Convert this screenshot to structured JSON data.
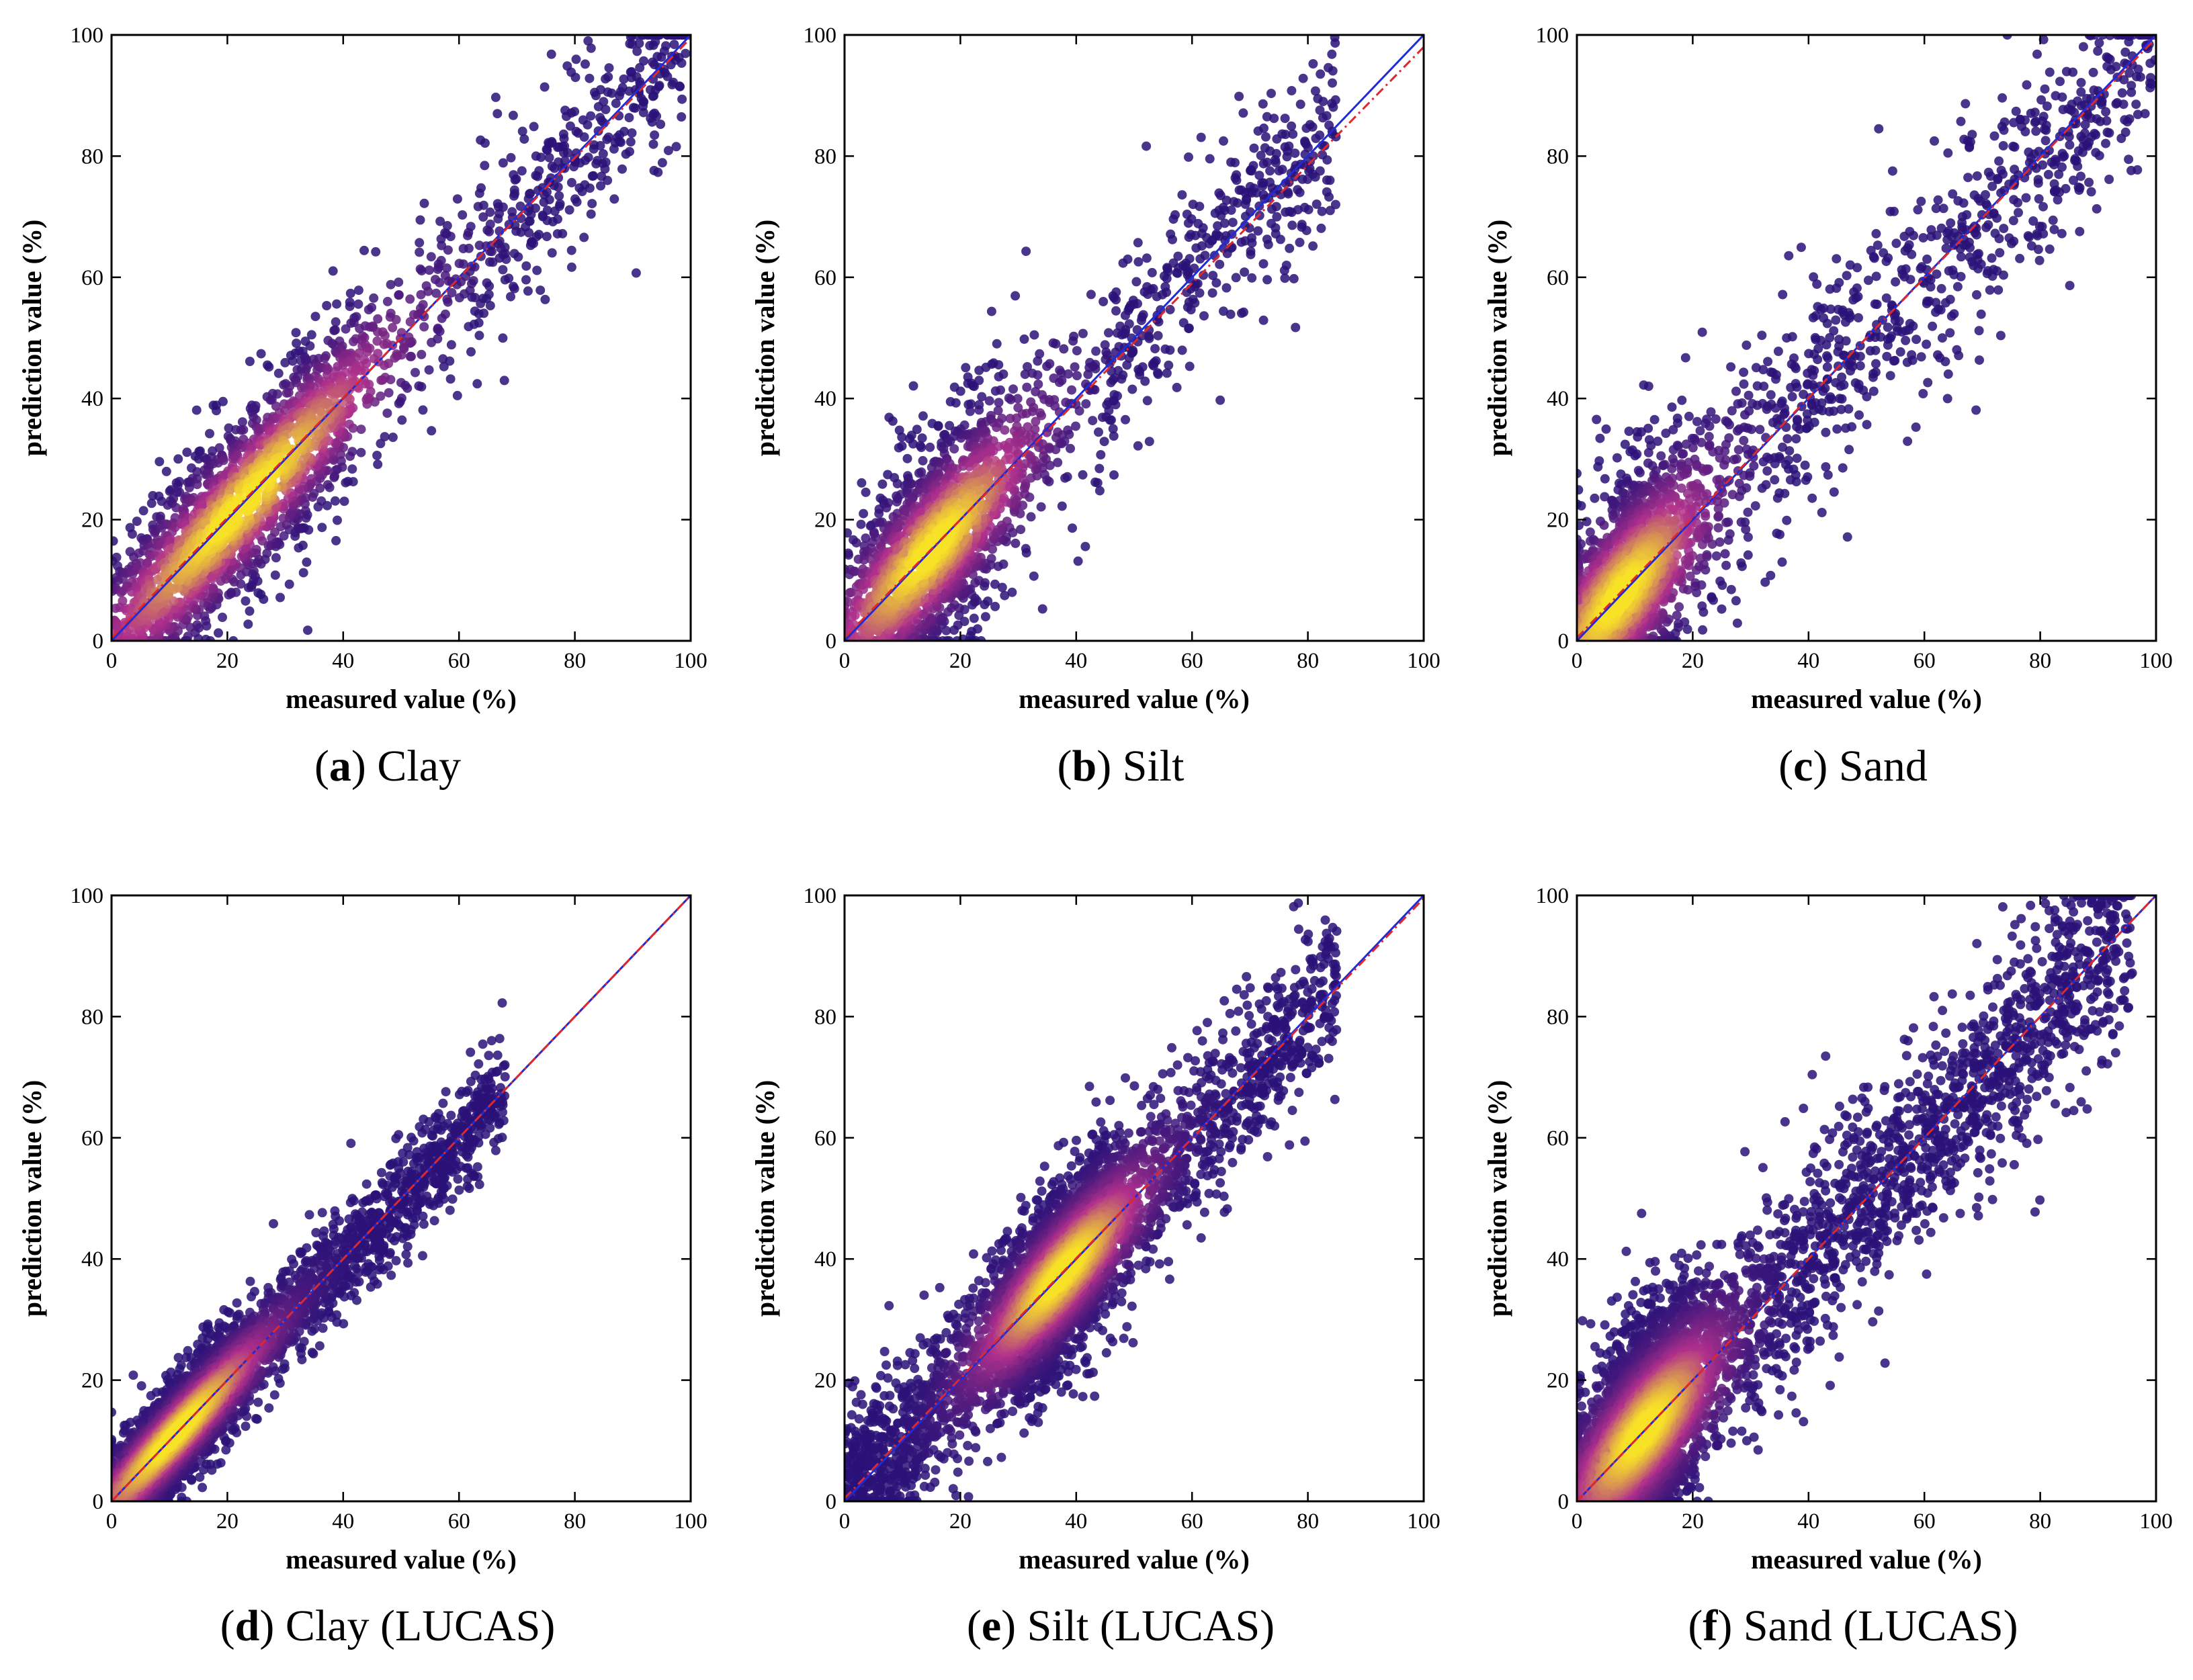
{
  "figure": {
    "colors": {
      "identity_line": "#1f2bd6",
      "fit_line": "#e0282a",
      "density_low": "#2a1278",
      "density_mid": "#b0308c",
      "density_high": "#f8e227",
      "frame": "#000000"
    }
  },
  "chart_data": [
    {
      "id": "a",
      "type": "scatter",
      "caption_letter": "a",
      "caption_text": "Clay",
      "xlabel": "measured value (%)",
      "ylabel": "prediction value (%)",
      "xlim": [
        0,
        100
      ],
      "ylim": [
        0,
        100
      ],
      "xticks": [
        "0",
        "20",
        "40",
        "60",
        "80",
        "100"
      ],
      "yticks": [
        "0",
        "20",
        "40",
        "60",
        "80",
        "100"
      ],
      "lines": [
        {
          "name": "1:1 line",
          "style": "solid",
          "color": "#1f2bd6",
          "from": [
            0,
            0
          ],
          "to": [
            100,
            100
          ]
        },
        {
          "name": "fitted line",
          "style": "dashdot",
          "color": "#e0282a",
          "from": [
            0,
            0.5
          ],
          "to": [
            100,
            99.5
          ]
        }
      ],
      "density_points": {
        "count": 2400,
        "distribution": "centered near identity line, dense 5-45%, sparser 50-100%",
        "core_range": [
          5,
          40
        ],
        "x_range": [
          0,
          100
        ],
        "spread": 9
      }
    },
    {
      "id": "b",
      "type": "scatter",
      "caption_letter": "b",
      "caption_text": "Silt",
      "xlabel": "measured value (%)",
      "ylabel": "prediction value (%)",
      "xlim": [
        0,
        100
      ],
      "ylim": [
        0,
        100
      ],
      "xticks": [
        "0",
        "20",
        "40",
        "60",
        "80",
        "100"
      ],
      "yticks": [
        "0",
        "20",
        "40",
        "60",
        "80",
        "100"
      ],
      "lines": [
        {
          "name": "1:1 line",
          "style": "solid",
          "color": "#1f2bd6",
          "from": [
            0,
            0
          ],
          "to": [
            100,
            100
          ]
        },
        {
          "name": "fitted line",
          "style": "dashdot",
          "color": "#e0282a",
          "from": [
            0,
            0.5
          ],
          "to": [
            100,
            98
          ]
        }
      ],
      "density_points": {
        "count": 2200,
        "distribution": "dense 5-30%, sparse to 85%",
        "core_range": [
          5,
          25
        ],
        "x_range": [
          0,
          85
        ],
        "spread": 10
      }
    },
    {
      "id": "c",
      "type": "scatter",
      "caption_letter": "c",
      "caption_text": "Sand",
      "xlabel": "measured value (%)",
      "ylabel": "prediction value (%)",
      "xlim": [
        0,
        100
      ],
      "ylim": [
        0,
        100
      ],
      "xticks": [
        "0",
        "20",
        "40",
        "60",
        "80",
        "100"
      ],
      "yticks": [
        "0",
        "20",
        "40",
        "60",
        "80",
        "100"
      ],
      "lines": [
        {
          "name": "1:1 line",
          "style": "solid",
          "color": "#1f2bd6",
          "from": [
            0,
            0
          ],
          "to": [
            100,
            100
          ]
        },
        {
          "name": "fitted line",
          "style": "dashdot",
          "color": "#e0282a",
          "from": [
            0,
            0.5
          ],
          "to": [
            100,
            99.5
          ]
        }
      ],
      "density_points": {
        "count": 2500,
        "distribution": "dense 0-20%, spread across full range",
        "core_range": [
          0,
          15
        ],
        "x_range": [
          0,
          100
        ],
        "spread": 11
      }
    },
    {
      "id": "d",
      "type": "scatter",
      "caption_letter": "d",
      "caption_text": "Clay (LUCAS)",
      "xlabel": "measured value (%)",
      "ylabel": "prediction value (%)",
      "xlim": [
        0,
        100
      ],
      "ylim": [
        0,
        100
      ],
      "xticks": [
        "0",
        "20",
        "40",
        "60",
        "80",
        "100"
      ],
      "yticks": [
        "0",
        "20",
        "40",
        "60",
        "80",
        "100"
      ],
      "lines": [
        {
          "name": "1:1 line",
          "style": "solid",
          "color": "#1f2bd6",
          "from": [
            0,
            0
          ],
          "to": [
            100,
            100
          ]
        },
        {
          "name": "fitted line",
          "style": "dashdot",
          "color": "#e0282a",
          "from": [
            0,
            0
          ],
          "to": [
            100,
            100
          ]
        }
      ],
      "density_points": {
        "count": 4000,
        "distribution": "dense 2-30%, tail to 68%",
        "core_range": [
          2,
          20
        ],
        "x_range": [
          0,
          68
        ],
        "spread": 5
      }
    },
    {
      "id": "e",
      "type": "scatter",
      "caption_letter": "e",
      "caption_text": "Silt (LUCAS)",
      "xlabel": "measured value (%)",
      "ylabel": "prediction value (%)",
      "xlim": [
        0,
        100
      ],
      "ylim": [
        0,
        100
      ],
      "xticks": [
        "0",
        "20",
        "40",
        "60",
        "80",
        "100"
      ],
      "yticks": [
        "0",
        "20",
        "40",
        "60",
        "80",
        "100"
      ],
      "lines": [
        {
          "name": "1:1 line",
          "style": "solid",
          "color": "#1f2bd6",
          "from": [
            0,
            0
          ],
          "to": [
            100,
            100
          ]
        },
        {
          "name": "fitted line",
          "style": "dashdot",
          "color": "#e0282a",
          "from": [
            0,
            0.5
          ],
          "to": [
            100,
            99.5
          ]
        }
      ],
      "density_points": {
        "count": 4500,
        "distribution": "dense 25-55%, spread 0-85%",
        "core_range": [
          30,
          45
        ],
        "x_range": [
          0,
          85
        ],
        "spread": 8
      }
    },
    {
      "id": "f",
      "type": "scatter",
      "caption_letter": "f",
      "caption_text": "Sand (LUCAS)",
      "xlabel": "measured value (%)",
      "ylabel": "prediction value (%)",
      "xlim": [
        0,
        100
      ],
      "ylim": [
        0,
        100
      ],
      "xticks": [
        "0",
        "20",
        "40",
        "60",
        "80",
        "100"
      ],
      "yticks": [
        "0",
        "20",
        "40",
        "60",
        "80",
        "100"
      ],
      "lines": [
        {
          "name": "1:1 line",
          "style": "solid",
          "color": "#1f2bd6",
          "from": [
            0,
            0
          ],
          "to": [
            100,
            100
          ]
        },
        {
          "name": "fitted line",
          "style": "dashdot",
          "color": "#e0282a",
          "from": [
            0,
            0
          ],
          "to": [
            100,
            100
          ]
        }
      ],
      "density_points": {
        "count": 5000,
        "distribution": "dense 5-20%, spread across full range",
        "core_range": [
          5,
          18
        ],
        "x_range": [
          0,
          96
        ],
        "spread": 10
      }
    }
  ]
}
